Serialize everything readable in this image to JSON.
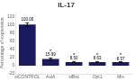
{
  "chart_data": {
    "type": "bar",
    "title": "IL-17",
    "categories": [
      "siCONTROL",
      "AsiA",
      "siBsc",
      "Opt1",
      "Mix"
    ],
    "values": [
      100.0,
      15.99,
      8.5,
      8.63,
      8.57
    ],
    "value_labels": [
      "100.00",
      "15.99",
      "8.50",
      "8.63",
      "8.57"
    ],
    "errors": [
      4.0,
      2.5,
      1.5,
      1.2,
      1.0
    ],
    "color": "#1a1a5e",
    "ylabel": "Percentage of expression",
    "ylim": [
      -20,
      130
    ],
    "yticks": [
      -20,
      0,
      20,
      40,
      60,
      80,
      100,
      120
    ],
    "grid": false,
    "data_labels": true,
    "annotations": [
      {
        "text": "*",
        "category": "AsiA"
      },
      {
        "text": "*",
        "category": "siBsc"
      },
      {
        "text": "*",
        "category": "Opt1"
      },
      {
        "text": "*",
        "category": "Mix"
      }
    ]
  }
}
